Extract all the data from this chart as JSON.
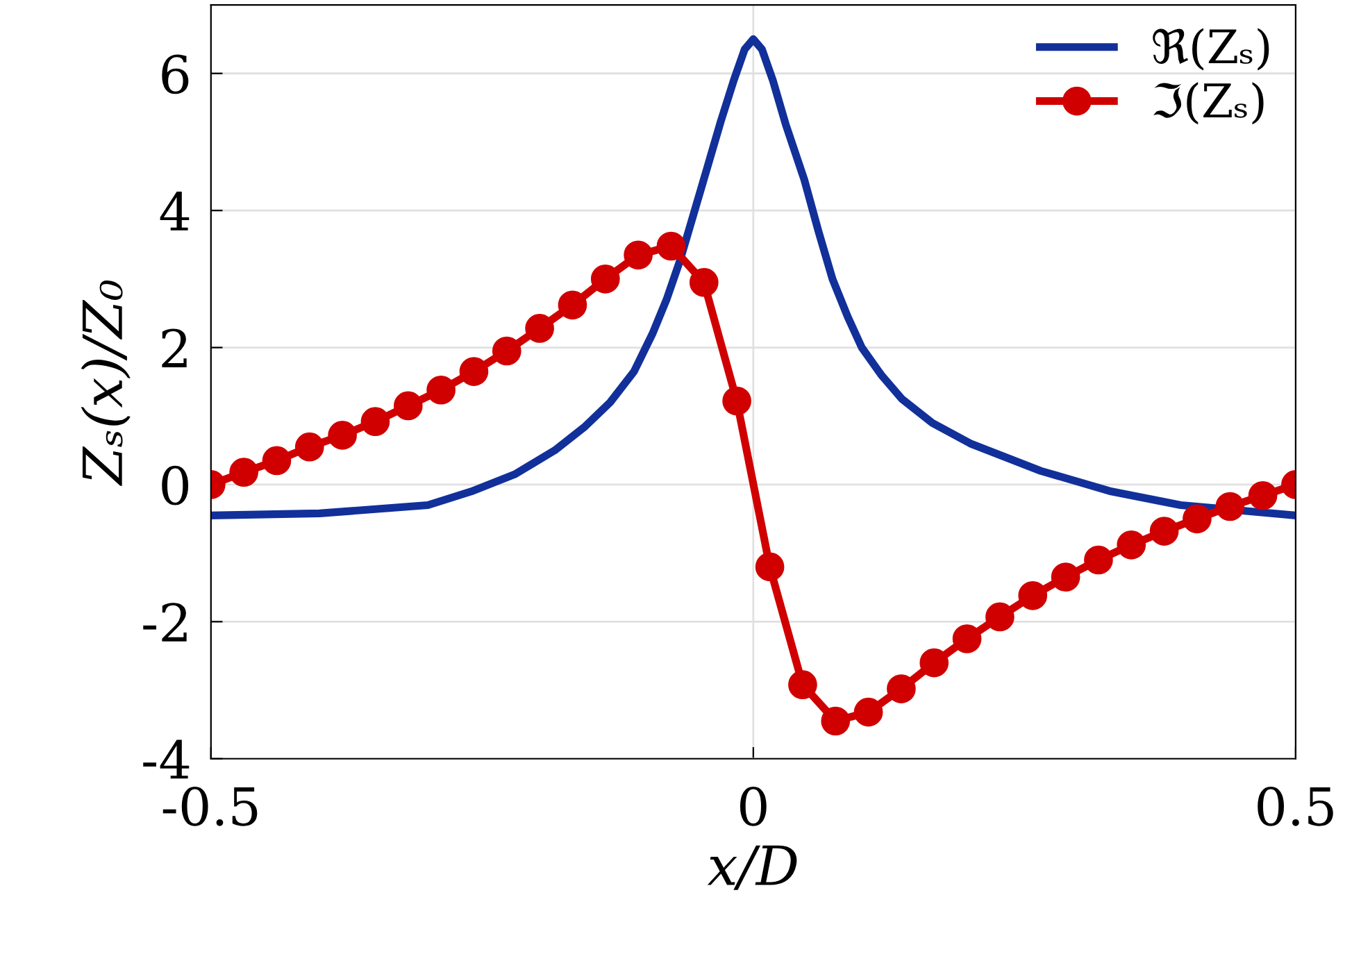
{
  "chart_data": {
    "type": "line",
    "xlabel": "x/D",
    "ylabel": "Zₛ(x)/Z₀",
    "xlim": [
      -0.5,
      0.5
    ],
    "ylim": [
      -4,
      7
    ],
    "xticks": [
      -0.5,
      0,
      0.5
    ],
    "yticks": [
      -4,
      -2,
      0,
      2,
      4,
      6
    ],
    "grid": true,
    "legend": "top right",
    "series": [
      {
        "name": "ℜ(Zₛ)",
        "color": "#12309a",
        "marker": "none",
        "x": [
          -0.5,
          -0.4,
          -0.3,
          -0.26,
          -0.22,
          -0.183,
          -0.155,
          -0.132,
          -0.11,
          -0.093,
          -0.08,
          -0.068,
          -0.055,
          -0.042,
          -0.03,
          -0.018,
          -0.008,
          0,
          0.008,
          0.018,
          0.03,
          0.047,
          0.06,
          0.073,
          0.087,
          0.1,
          0.118,
          0.137,
          0.165,
          0.2,
          0.265,
          0.33,
          0.394,
          0.5
        ],
        "values": [
          -0.45,
          -0.42,
          -0.3,
          -0.1,
          0.15,
          0.5,
          0.85,
          1.2,
          1.65,
          2.2,
          2.7,
          3.25,
          3.95,
          4.65,
          5.3,
          5.9,
          6.35,
          6.5,
          6.35,
          5.9,
          5.25,
          4.45,
          3.7,
          3.0,
          2.45,
          2.0,
          1.6,
          1.25,
          0.9,
          0.6,
          0.2,
          -0.1,
          -0.3,
          -0.45
        ]
      },
      {
        "name": "ℑ(Zₛ)",
        "color": "#d00000",
        "marker": "circle",
        "x": [
          -0.5,
          -0.4697,
          -0.4394,
          -0.4091,
          -0.3788,
          -0.3485,
          -0.3182,
          -0.2879,
          -0.2576,
          -0.2273,
          -0.197,
          -0.1667,
          -0.1364,
          -0.1061,
          -0.0758,
          -0.0455,
          -0.0152,
          0.0152,
          0.0455,
          0.0758,
          0.1061,
          0.1364,
          0.1667,
          0.197,
          0.2273,
          0.2576,
          0.2879,
          0.3182,
          0.3485,
          0.3788,
          0.4091,
          0.4394,
          0.4697,
          0.5
        ],
        "values": [
          0,
          0.18,
          0.35,
          0.55,
          0.72,
          0.92,
          1.15,
          1.38,
          1.65,
          1.95,
          2.28,
          2.62,
          3.0,
          3.35,
          3.48,
          2.95,
          1.22,
          -1.2,
          -2.92,
          -3.45,
          -3.32,
          -2.98,
          -2.6,
          -2.25,
          -1.93,
          -1.62,
          -1.35,
          -1.1,
          -0.88,
          -0.68,
          -0.5,
          -0.32,
          -0.16,
          0
        ]
      }
    ]
  }
}
